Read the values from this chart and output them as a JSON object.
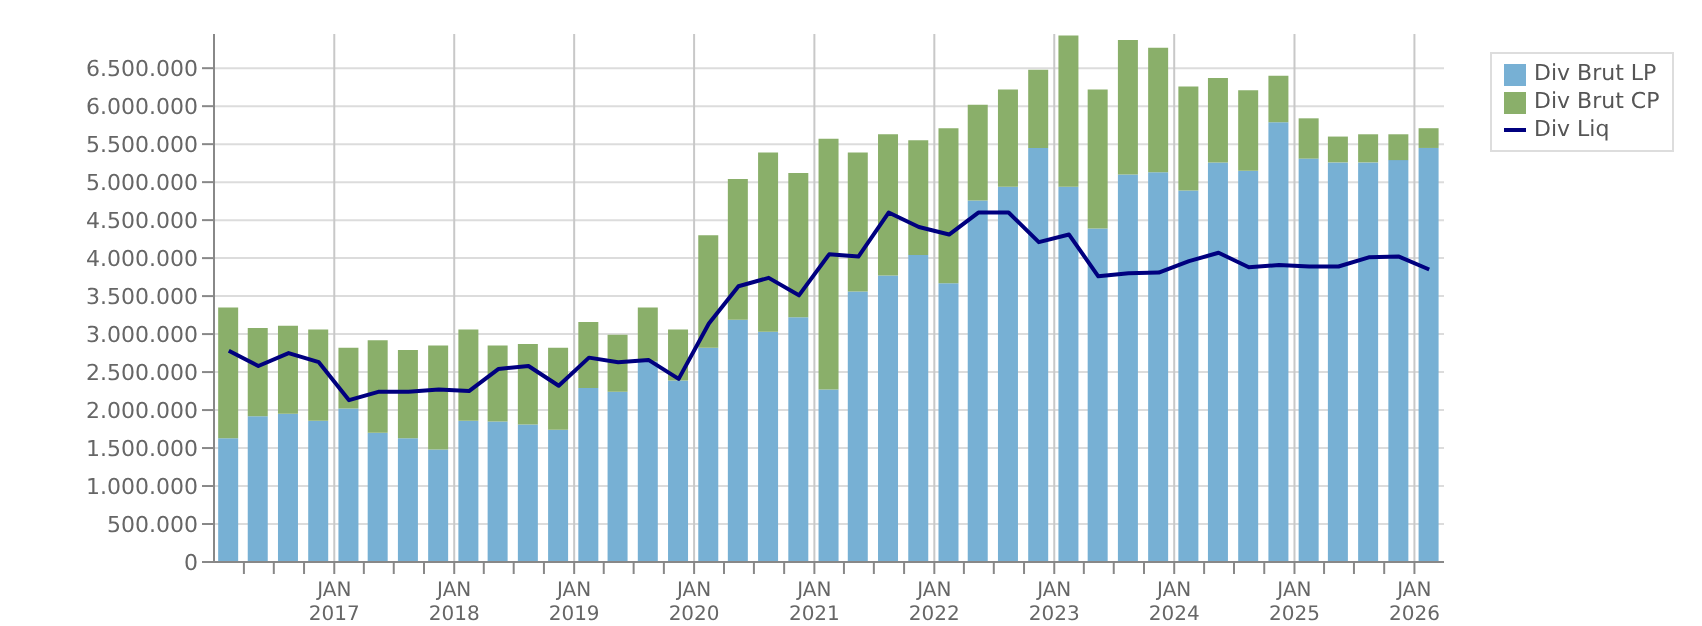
{
  "chart_data": {
    "type": "bar",
    "stacked": true,
    "x": [
      "2016-02-15",
      "2016-05-15",
      "2016-08-15",
      "2016-11-15",
      "2017-02-15",
      "2017-05-15",
      "2017-08-15",
      "2017-11-15",
      "2018-02-15",
      "2018-05-15",
      "2018-08-15",
      "2018-11-15",
      "2019-02-15",
      "2019-05-15",
      "2019-08-15",
      "2019-11-15",
      "2020-02-15",
      "2020-05-15",
      "2020-08-15",
      "2020-11-15",
      "2021-02-15",
      "2021-05-15",
      "2021-08-15",
      "2021-11-15",
      "2022-02-15",
      "2022-05-15",
      "2022-08-15",
      "2022-11-15",
      "2023-02-15",
      "2023-05-15",
      "2023-08-15",
      "2023-11-15",
      "2024-02-15",
      "2024-05-15",
      "2024-08-15",
      "2024-11-15",
      "2025-02-15",
      "2025-05-15",
      "2025-08-15",
      "2025-11-15",
      "2026-02-15"
    ],
    "series": [
      {
        "name": "Div Brut LP",
        "color": "#77b0d4",
        "values": [
          1630000,
          1920000,
          1950000,
          1860000,
          2020000,
          1700000,
          1630000,
          1480000,
          1860000,
          1850000,
          1810000,
          1740000,
          2290000,
          2240000,
          2640000,
          2390000,
          2820000,
          3190000,
          3030000,
          3220000,
          2270000,
          3560000,
          3770000,
          4040000,
          3670000,
          4760000,
          4940000,
          5450000,
          4940000,
          4390000,
          5100000,
          5130000,
          4890000,
          5260000,
          5150000,
          5790000,
          5310000,
          5260000,
          5260000,
          5290000,
          5450000
        ]
      },
      {
        "name": "Div Brut CP",
        "color": "#8aaf6a",
        "values": [
          1720000,
          1160000,
          1160000,
          1200000,
          800000,
          1220000,
          1160000,
          1370000,
          1200000,
          1000000,
          1060000,
          1080000,
          870000,
          750000,
          710000,
          670000,
          1480000,
          1850000,
          2360000,
          1900000,
          3300000,
          1830000,
          1860000,
          1510000,
          2040000,
          1260000,
          1280000,
          1030000,
          1990000,
          1830000,
          1770000,
          1640000,
          1370000,
          1110000,
          1060000,
          610000,
          530000,
          340000,
          370000,
          340000,
          260000
        ]
      },
      {
        "name": "Div Liq",
        "type": "line",
        "color": "#00007f",
        "values": [
          2780000,
          2580000,
          2750000,
          2630000,
          2130000,
          2240000,
          2240000,
          2270000,
          2250000,
          2540000,
          2580000,
          2320000,
          2690000,
          2630000,
          2660000,
          2410000,
          3140000,
          3630000,
          3740000,
          3510000,
          4050000,
          4020000,
          4600000,
          4410000,
          4310000,
          4600000,
          4600000,
          4210000,
          4310000,
          3760000,
          3800000,
          3810000,
          3960000,
          4070000,
          3880000,
          3910000,
          3890000,
          3890000,
          4010000,
          4020000,
          3850000
        ]
      }
    ],
    "xlim": [
      "2016-01-01",
      "2026-04-01"
    ],
    "xticks": [
      {
        "value": "2016-04-01",
        "label": null
      },
      {
        "value": "2016-07-01",
        "label": null
      },
      {
        "value": "2016-10-01",
        "label": null
      },
      {
        "value": "2017-01-01",
        "label": "JAN 2017"
      },
      {
        "value": "2017-04-01",
        "label": null
      },
      {
        "value": "2017-07-01",
        "label": null
      },
      {
        "value": "2017-10-01",
        "label": null
      },
      {
        "value": "2018-01-01",
        "label": "JAN 2018"
      },
      {
        "value": "2018-04-01",
        "label": null
      },
      {
        "value": "2018-07-01",
        "label": null
      },
      {
        "value": "2018-10-01",
        "label": null
      },
      {
        "value": "2019-01-01",
        "label": "JAN 2019"
      },
      {
        "value": "2019-04-01",
        "label": null
      },
      {
        "value": "2019-07-01",
        "label": null
      },
      {
        "value": "2019-10-01",
        "label": null
      },
      {
        "value": "2020-01-01",
        "label": "JAN 2020"
      },
      {
        "value": "2020-04-01",
        "label": null
      },
      {
        "value": "2020-07-01",
        "label": null
      },
      {
        "value": "2020-10-01",
        "label": null
      },
      {
        "value": "2021-01-01",
        "label": "JAN 2021"
      },
      {
        "value": "2021-04-01",
        "label": null
      },
      {
        "value": "2021-07-01",
        "label": null
      },
      {
        "value": "2021-10-01",
        "label": null
      },
      {
        "value": "2022-01-01",
        "label": "JAN 2022"
      },
      {
        "value": "2022-04-01",
        "label": null
      },
      {
        "value": "2022-07-01",
        "label": null
      },
      {
        "value": "2022-10-01",
        "label": null
      },
      {
        "value": "2023-01-01",
        "label": "JAN 2023"
      },
      {
        "value": "2023-04-01",
        "label": null
      },
      {
        "value": "2023-07-01",
        "label": null
      },
      {
        "value": "2023-10-01",
        "label": null
      },
      {
        "value": "2024-01-01",
        "label": "JAN 2024"
      },
      {
        "value": "2024-04-01",
        "label": null
      },
      {
        "value": "2024-07-01",
        "label": null
      },
      {
        "value": "2024-10-01",
        "label": null
      },
      {
        "value": "2025-01-01",
        "label": "JAN 2025"
      },
      {
        "value": "2025-04-01",
        "label": null
      },
      {
        "value": "2025-07-01",
        "label": null
      },
      {
        "value": "2025-10-01",
        "label": null
      },
      {
        "value": "2026-01-01",
        "label": "JAN 2026"
      }
    ],
    "ylim": [
      0,
      6950000
    ],
    "yticks": [
      0,
      {
        "value": 500000,
        "label": "500.000"
      },
      {
        "value": 1000000,
        "label": "1.000.000"
      },
      {
        "value": 1500000,
        "label": "1.500.000"
      },
      {
        "value": 2000000,
        "label": "2.000.000"
      },
      {
        "value": 2500000,
        "label": "2.500.000"
      },
      {
        "value": 3000000,
        "label": "3.000.000"
      },
      {
        "value": 3500000,
        "label": "3.500.000"
      },
      {
        "value": 4000000,
        "label": "4.000.000"
      },
      {
        "value": 4500000,
        "label": "4.500.000"
      },
      {
        "value": 5000000,
        "label": "5.000.000"
      },
      {
        "value": 5500000,
        "label": "5.500.000"
      },
      {
        "value": 6000000,
        "label": "6.000.000"
      },
      {
        "value": 6500000,
        "label": "6.500.000"
      }
    ],
    "grid": true,
    "legend": "right",
    "marker": "none"
  }
}
